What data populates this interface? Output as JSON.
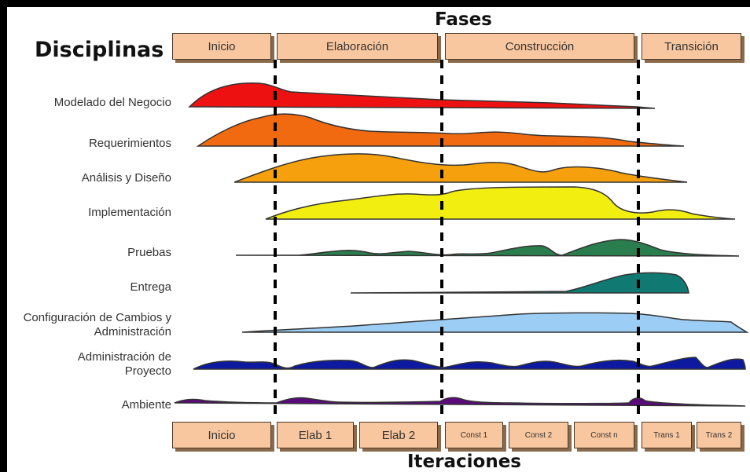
{
  "header": {
    "fases_title": "Fases",
    "disciplinas_title": "Disciplinas",
    "iteraciones_title": "Iteraciones"
  },
  "phases": [
    "Inicio",
    "Elaboración",
    "Construcción",
    "Transición"
  ],
  "iterations": [
    "Inicio",
    "Elab 1",
    "Elab 2",
    "Const 1",
    "Const 2",
    "Const n",
    "Trans 1",
    "Trans 2"
  ],
  "disciplines": [
    {
      "label": "Modelado del Negocio",
      "color": "#ee1111"
    },
    {
      "label": "Requerimientos",
      "color": "#f26a0f"
    },
    {
      "label": "Análisis y Diseño",
      "color": "#f5a00c"
    },
    {
      "label": "Implementación",
      "color": "#f2ee10"
    },
    {
      "label": "Pruebas",
      "color": "#2a7d4c"
    },
    {
      "label": "Entrega",
      "color": "#107a72"
    },
    {
      "label": "Configuración de Cambios y Administración",
      "color": "#9ccdf4"
    },
    {
      "label": "Administración de Proyecto",
      "color": "#0d1aa0"
    },
    {
      "label": "Ambiente",
      "color": "#5a0a7a"
    }
  ]
}
